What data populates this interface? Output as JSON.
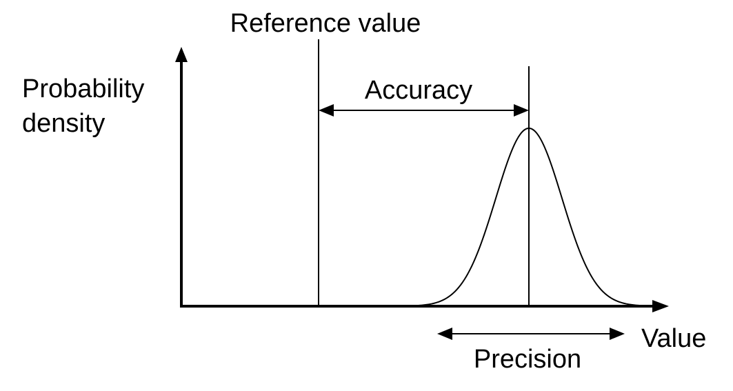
{
  "labels": {
    "reference": "Reference value",
    "y_axis_line1": "Probability",
    "y_axis_line2": "density",
    "accuracy": "Accuracy",
    "x_axis": "Value",
    "precision": "Precision"
  },
  "colors": {
    "ink": "#000000",
    "background": "#ffffff"
  }
}
